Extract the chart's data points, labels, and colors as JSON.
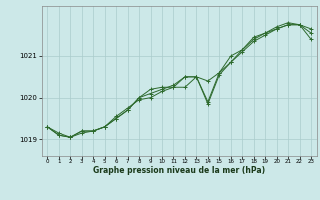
{
  "title": "Graphe pression niveau de la mer (hPa)",
  "background_color": "#cce8e8",
  "grid_color": "#aacccc",
  "line_color": "#2d6a2d",
  "xlim": [
    -0.5,
    23.5
  ],
  "ylim": [
    1018.6,
    1022.2
  ],
  "yticks": [
    1019,
    1020,
    1021
  ],
  "xticks": [
    0,
    1,
    2,
    3,
    4,
    5,
    6,
    7,
    8,
    9,
    10,
    11,
    12,
    13,
    14,
    15,
    16,
    17,
    18,
    19,
    20,
    21,
    22,
    23
  ],
  "series": [
    [
      1019.3,
      1019.1,
      1019.05,
      1019.2,
      1019.2,
      1019.3,
      1019.5,
      1019.7,
      1020.0,
      1020.2,
      1020.25,
      1020.25,
      1020.25,
      1020.5,
      1019.9,
      1020.6,
      1020.85,
      1021.15,
      1021.4,
      1021.55,
      1021.65,
      1021.75,
      1021.75,
      1021.65
    ],
    [
      1019.3,
      1019.1,
      1019.05,
      1019.2,
      1019.2,
      1019.3,
      1019.55,
      1019.75,
      1019.95,
      1020.0,
      1020.15,
      1020.25,
      1020.5,
      1020.5,
      1020.4,
      1020.6,
      1021.0,
      1021.15,
      1021.45,
      1021.55,
      1021.7,
      1021.8,
      1021.75,
      1021.4
    ],
    [
      1019.3,
      1019.15,
      1019.05,
      1019.15,
      1019.2,
      1019.3,
      1019.5,
      1019.7,
      1020.0,
      1020.1,
      1020.2,
      1020.3,
      1020.5,
      1020.5,
      1019.85,
      1020.55,
      1020.85,
      1021.1,
      1021.35,
      1021.5,
      1021.65,
      1021.75,
      1021.75,
      1021.55
    ]
  ]
}
